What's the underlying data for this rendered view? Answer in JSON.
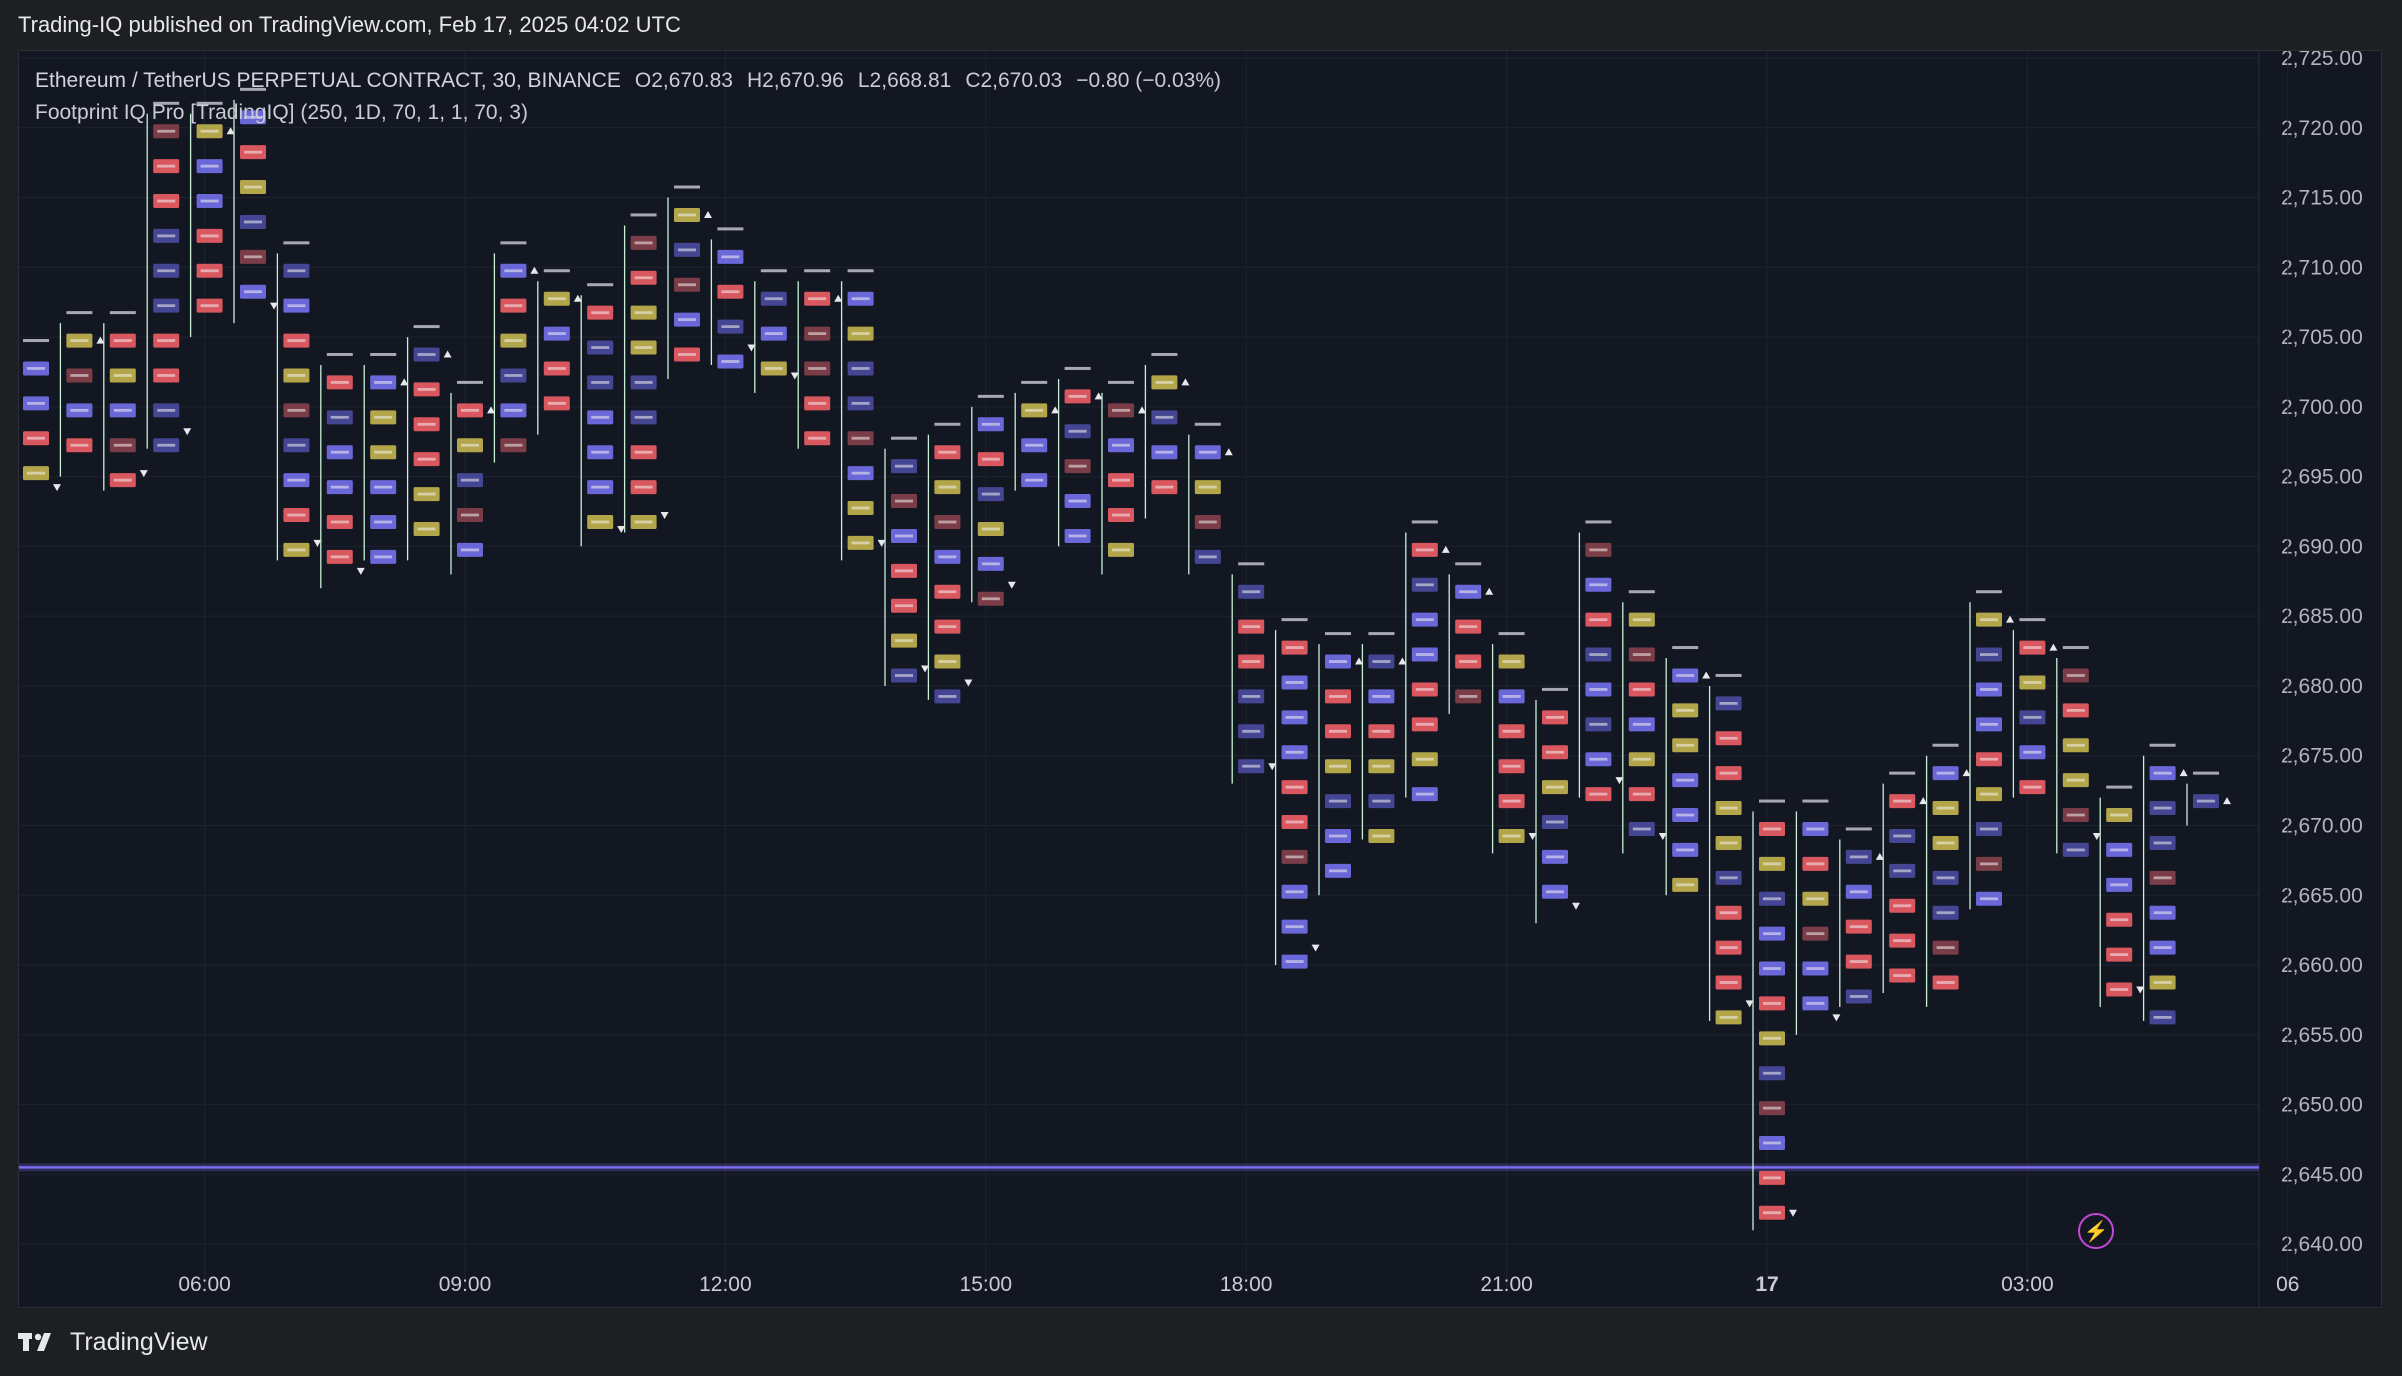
{
  "header": {
    "published": "Trading-IQ published on TradingView.com, Feb 17, 2025 04:02 UTC"
  },
  "legend": {
    "symbol": "Ethereum / TetherUS PERPETUAL CONTRACT, 30, BINANCE",
    "open": "O2,670.83",
    "high": "H2,670.96",
    "low": "L2,668.81",
    "close": "C2,670.03",
    "change": "−0.80 (−0.03%)",
    "indicator": "Footprint IQ Pro [TradingIQ] (250, 1D, 70, 1, 1, 70, 3)"
  },
  "footer": {
    "brand": "TradingView"
  },
  "colors": {
    "background": "#131722",
    "grid": "#1f2330",
    "wick": "#c8f0d8",
    "cell_buy": "#6a67d8",
    "cell_buy_dim": "#454693",
    "cell_sell": "#d9575f",
    "cell_sell_dim": "#7a3d47",
    "cell_neutral": "#b3a64a",
    "poc_line": "#7b6cf2"
  },
  "chart_data": {
    "type": "footprint",
    "interval_minutes": 30,
    "y_axis": {
      "min": 2636.5,
      "max": 2725.5,
      "tick_labels": [
        "2,725.00",
        "2,720.00",
        "2,715.00",
        "2,710.00",
        "2,705.00",
        "2,700.00",
        "2,695.00",
        "2,690.00",
        "2,685.00",
        "2,680.00",
        "2,675.00",
        "2,670.00",
        "2,665.00",
        "2,660.00",
        "2,655.00",
        "2,650.00",
        "2,645.00",
        "2,640.00"
      ]
    },
    "x_axis": {
      "tick_labels": [
        {
          "label": "06:00",
          "bar": 4,
          "bold": false
        },
        {
          "label": "09:00",
          "bar": 10,
          "bold": false
        },
        {
          "label": "12:00",
          "bar": 16,
          "bold": false
        },
        {
          "label": "15:00",
          "bar": 22,
          "bold": false
        },
        {
          "label": "18:00",
          "bar": 28,
          "bold": false
        },
        {
          "label": "21:00",
          "bar": 34,
          "bold": false
        },
        {
          "label": "17",
          "bar": 40,
          "bold": true
        },
        {
          "label": "03:00",
          "bar": 46,
          "bold": false
        },
        {
          "label": "06",
          "bar": 52,
          "bold": false
        }
      ]
    },
    "poc_level": 2645.5,
    "row_size": 2.5,
    "bars": [
      {
        "high": 2704,
        "low": 2693,
        "direction": "down"
      },
      {
        "high": 2706,
        "low": 2695,
        "direction": "up"
      },
      {
        "high": 2706,
        "low": 2694,
        "direction": "down"
      },
      {
        "high": 2721,
        "low": 2697,
        "direction": "down"
      },
      {
        "high": 2721,
        "low": 2705,
        "direction": "up"
      },
      {
        "high": 2722,
        "low": 2706,
        "direction": "down"
      },
      {
        "high": 2711,
        "low": 2689,
        "direction": "down"
      },
      {
        "high": 2703,
        "low": 2687,
        "direction": "down"
      },
      {
        "high": 2703,
        "low": 2689,
        "direction": "up"
      },
      {
        "high": 2705,
        "low": 2689,
        "direction": "up"
      },
      {
        "high": 2701,
        "low": 2688,
        "direction": "up"
      },
      {
        "high": 2711,
        "low": 2696,
        "direction": "up"
      },
      {
        "high": 2709,
        "low": 2698,
        "direction": "up"
      },
      {
        "high": 2708,
        "low": 2690,
        "direction": "down"
      },
      {
        "high": 2713,
        "low": 2691,
        "direction": "down"
      },
      {
        "high": 2715,
        "low": 2702,
        "direction": "up"
      },
      {
        "high": 2712,
        "low": 2703,
        "direction": "down"
      },
      {
        "high": 2709,
        "low": 2701,
        "direction": "down"
      },
      {
        "high": 2709,
        "low": 2697,
        "direction": "up"
      },
      {
        "high": 2709,
        "low": 2689,
        "direction": "down"
      },
      {
        "high": 2697,
        "low": 2680,
        "direction": "down"
      },
      {
        "high": 2698,
        "low": 2679,
        "direction": "down"
      },
      {
        "high": 2700,
        "low": 2686,
        "direction": "down"
      },
      {
        "high": 2701,
        "low": 2694,
        "direction": "up"
      },
      {
        "high": 2702,
        "low": 2690,
        "direction": "up"
      },
      {
        "high": 2701,
        "low": 2688,
        "direction": "up"
      },
      {
        "high": 2703,
        "low": 2692,
        "direction": "up"
      },
      {
        "high": 2698,
        "low": 2688,
        "direction": "up"
      },
      {
        "high": 2688,
        "low": 2673,
        "direction": "down"
      },
      {
        "high": 2684,
        "low": 2660,
        "direction": "down"
      },
      {
        "high": 2683,
        "low": 2665,
        "direction": "up"
      },
      {
        "high": 2683,
        "low": 2669,
        "direction": "up"
      },
      {
        "high": 2691,
        "low": 2672,
        "direction": "up"
      },
      {
        "high": 2688,
        "low": 2678,
        "direction": "up"
      },
      {
        "high": 2683,
        "low": 2668,
        "direction": "down"
      },
      {
        "high": 2679,
        "low": 2663,
        "direction": "down"
      },
      {
        "high": 2691,
        "low": 2672,
        "direction": "down"
      },
      {
        "high": 2686,
        "low": 2668,
        "direction": "down"
      },
      {
        "high": 2682,
        "low": 2665,
        "direction": "up"
      },
      {
        "high": 2680,
        "low": 2656,
        "direction": "down"
      },
      {
        "high": 2671,
        "low": 2641,
        "direction": "down"
      },
      {
        "high": 2671,
        "low": 2655,
        "direction": "down"
      },
      {
        "high": 2669,
        "low": 2657,
        "direction": "up"
      },
      {
        "high": 2673,
        "low": 2658,
        "direction": "up"
      },
      {
        "high": 2675,
        "low": 2657,
        "direction": "up"
      },
      {
        "high": 2686,
        "low": 2664,
        "direction": "up"
      },
      {
        "high": 2684,
        "low": 2672,
        "direction": "up"
      },
      {
        "high": 2682,
        "low": 2668,
        "direction": "down"
      },
      {
        "high": 2672,
        "low": 2657,
        "direction": "down"
      },
      {
        "high": 2675,
        "low": 2656,
        "direction": "up"
      },
      {
        "high": 2673,
        "low": 2670,
        "direction": "up"
      }
    ]
  }
}
